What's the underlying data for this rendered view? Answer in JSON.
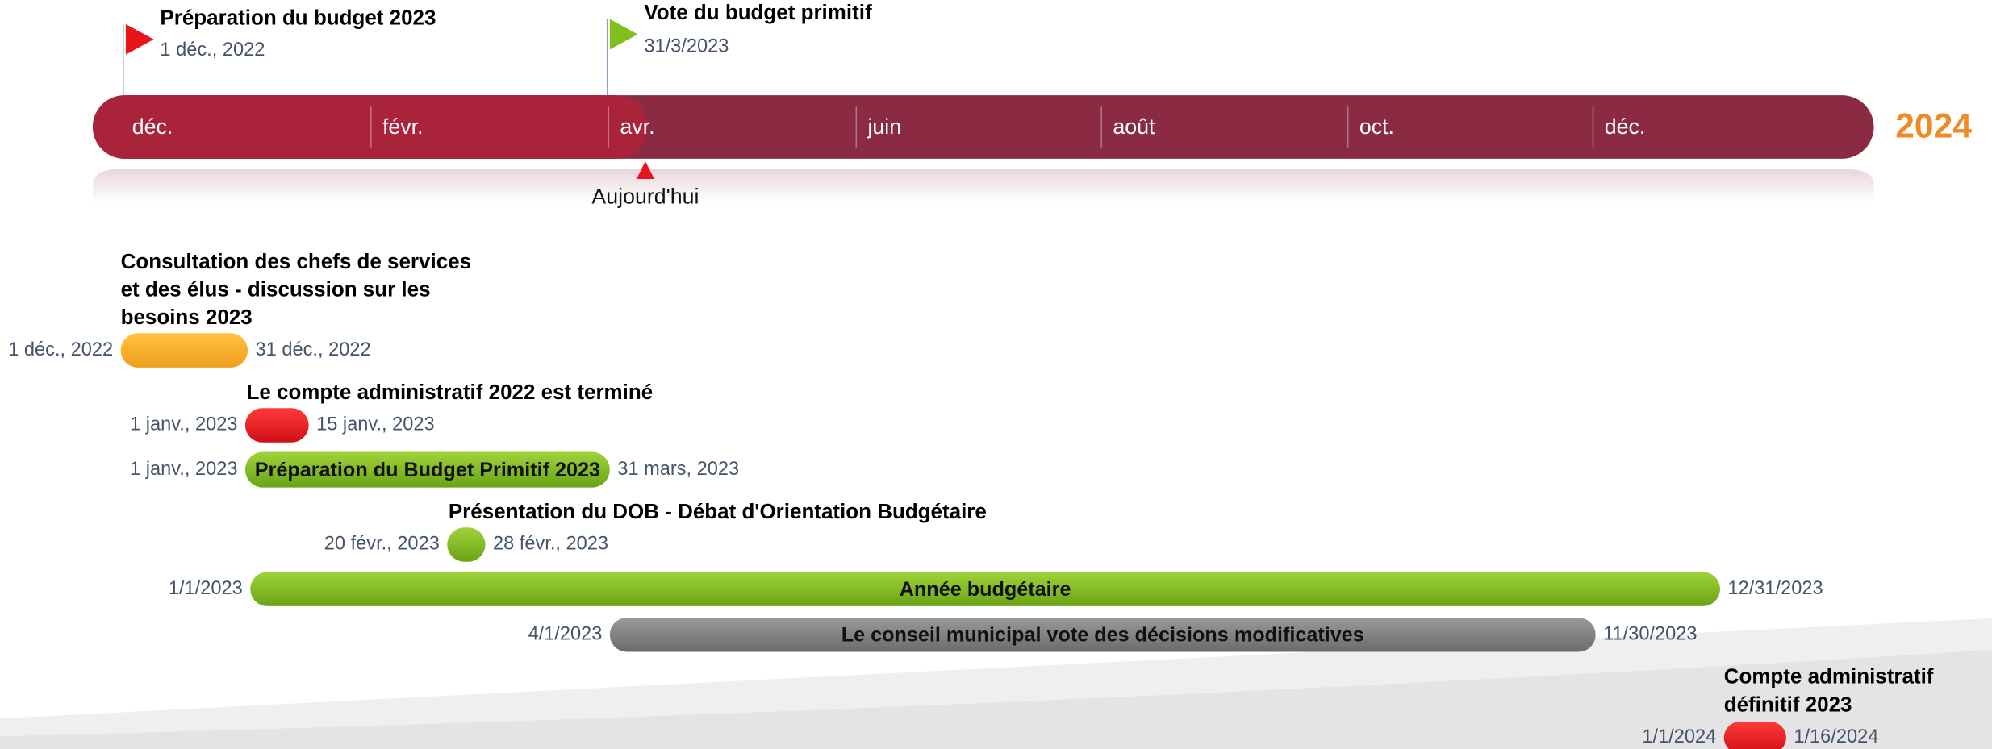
{
  "timeline": {
    "months": [
      "déc.",
      "févr.",
      "avr.",
      "juin",
      "août",
      "oct.",
      "déc."
    ],
    "year": "2024",
    "today": "Aujourd'hui"
  },
  "milestones": [
    {
      "title": "Préparation du budget 2023",
      "date": "1 déc., 2022"
    },
    {
      "title": "Vote du budget primitif",
      "date": "31/3/2023"
    }
  ],
  "tasks": [
    {
      "title": [
        "Consultation des chefs de services",
        "et des élus - discussion sur les",
        "besoins 2023"
      ],
      "start": "1 déc., 2022",
      "end": "31 déc., 2022"
    },
    {
      "title": [
        "Le compte administratif 2022 est terminé"
      ],
      "start": "1 janv., 2023",
      "end": "15 janv., 2023"
    },
    {
      "label": "Préparation du Budget Primitif 2023",
      "start": "1 janv., 2023",
      "end": "31 mars, 2023"
    },
    {
      "title": [
        "Présentation du DOB - Débat d'Orientation Budgétaire"
      ],
      "start": "20 févr., 2023",
      "end": "28 févr., 2023"
    },
    {
      "label": "Année budgétaire",
      "start": "1/1/2023",
      "end": "12/31/2023"
    },
    {
      "label": "Le conseil municipal vote des décisions modificatives",
      "start": "4/1/2023",
      "end": "11/30/2023"
    },
    {
      "title": [
        "Compte administratif",
        "définitif 2023"
      ],
      "start": "1/1/2024",
      "end": "1/16/2024"
    }
  ]
}
